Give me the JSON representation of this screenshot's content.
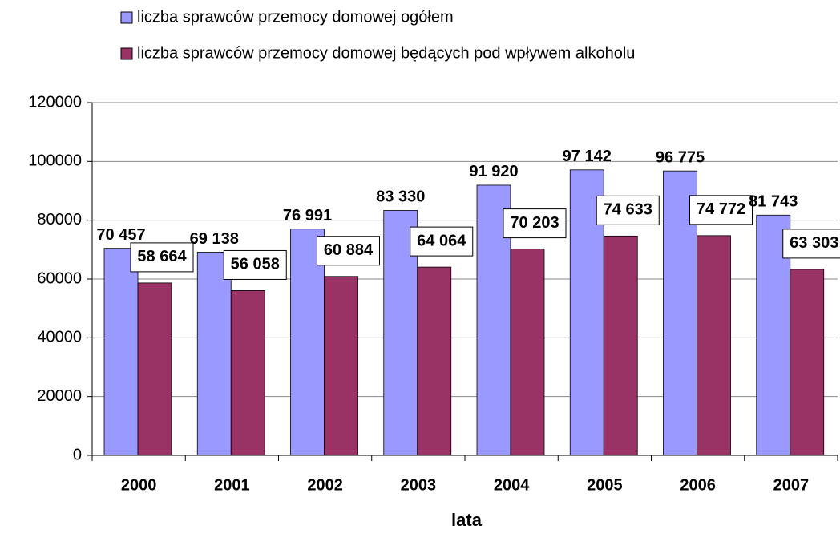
{
  "chart_data": {
    "type": "bar",
    "categories": [
      "2000",
      "2001",
      "2002",
      "2003",
      "2004",
      "2005",
      "2006",
      "2007"
    ],
    "series": [
      {
        "name": "liczba sprawców przemocy domowej ogółem",
        "color": "#9999ff",
        "values": [
          70457,
          69138,
          76991,
          83330,
          91920,
          97142,
          96775,
          81743
        ],
        "value_labels": [
          "70 457",
          "69 138",
          "76 991",
          "83 330",
          "91 920",
          "97 142",
          "96 775",
          "81 743"
        ]
      },
      {
        "name": "liczba sprawców przemocy domowej będących pod wpływem alkoholu",
        "color": "#993366",
        "values": [
          58664,
          56058,
          60884,
          64064,
          70203,
          74633,
          74772,
          63303
        ],
        "value_labels": [
          "58 664",
          "56 058",
          "60 884",
          "64 064",
          "70 203",
          "74 633",
          "74 772",
          "63 303"
        ]
      }
    ],
    "xlabel": "lata",
    "ylim": [
      0,
      120000
    ],
    "yticks": [
      0,
      20000,
      40000,
      60000,
      80000,
      100000,
      120000
    ],
    "grid": true,
    "legend": "top"
  }
}
